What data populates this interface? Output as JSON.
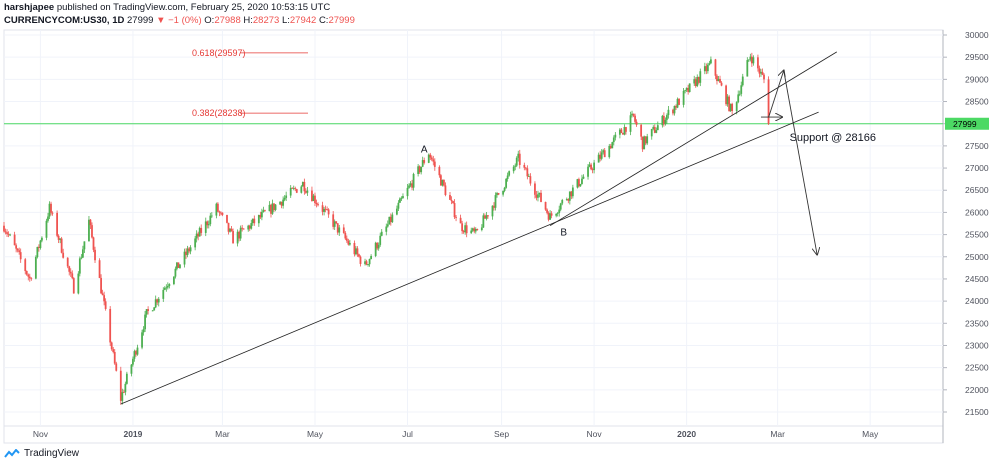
{
  "header": {
    "author": "harshjapee",
    "published": "published on TradingView.com, February 25, 2020 10:53:15 UTC",
    "symbol": "CURRENCYCOM:US30, 1D",
    "last": "27999",
    "change": "−1 (0%)",
    "o_label": "O:",
    "o_value": "27988",
    "h_label": "H:",
    "h_value": "28273",
    "l_label": "L:",
    "l_value": "27942",
    "c_label": "C:",
    "c_value": "27999"
  },
  "footer": {
    "brand": "TradingView"
  },
  "colors": {
    "up": "#26a69a",
    "up_bright": "#4caf50",
    "down": "#ef5350",
    "fib": "#e53935",
    "support_line": "#4cd964",
    "price_tag": "#4cd964",
    "trend": "#222222"
  },
  "chart_data": {
    "type": "candlestick",
    "title": "",
    "y_axis": {
      "ticks": [
        "30000",
        "29500",
        "29000",
        "28500",
        "28000",
        "27500",
        "27000",
        "26500",
        "26000",
        "25500",
        "25000",
        "24500",
        "24000",
        "23500",
        "23000",
        "22500",
        "22000",
        "21500"
      ],
      "range": [
        21250,
        30150
      ]
    },
    "x_axis": {
      "ticks": [
        "Nov",
        "2019",
        "Mar",
        "May",
        "Jul",
        "Sep",
        "Nov",
        "2020",
        "Mar",
        "May"
      ],
      "range_dates": [
        "2018-10-08",
        "2020-06-18"
      ]
    },
    "price_tag": "27999",
    "anchor_points": [
      {
        "date": "2018-10-08",
        "close": 25700
      },
      {
        "date": "2018-10-25",
        "close": 24500
      },
      {
        "date": "2018-11-07",
        "close": 26100
      },
      {
        "date": "2018-11-23",
        "close": 24300
      },
      {
        "date": "2018-12-03",
        "close": 25800
      },
      {
        "date": "2018-12-24",
        "close": 21800
      },
      {
        "date": "2019-01-10",
        "close": 23700
      },
      {
        "date": "2019-02-25",
        "close": 26100
      },
      {
        "date": "2019-03-08",
        "close": 25400
      },
      {
        "date": "2019-04-23",
        "close": 26650
      },
      {
        "date": "2019-05-10",
        "close": 25900
      },
      {
        "date": "2019-06-03",
        "close": 24800
      },
      {
        "date": "2019-07-15",
        "close": 27350
      },
      {
        "date": "2019-08-05",
        "close": 25700
      },
      {
        "date": "2019-08-15",
        "close": 25500
      },
      {
        "date": "2019-09-12",
        "close": 27200
      },
      {
        "date": "2019-10-03",
        "close": 25900
      },
      {
        "date": "2019-11-27",
        "close": 28150
      },
      {
        "date": "2019-12-03",
        "close": 27550
      },
      {
        "date": "2020-01-17",
        "close": 29350
      },
      {
        "date": "2020-01-31",
        "close": 28250
      },
      {
        "date": "2020-02-12",
        "close": 29550
      },
      {
        "date": "2020-02-21",
        "close": 28990
      },
      {
        "date": "2020-02-24",
        "close": 27999
      }
    ],
    "fibonacci": [
      {
        "label": "0.618(29597)",
        "value": 29597
      },
      {
        "label": "0.382(28238)",
        "value": 28238
      }
    ],
    "horizontal_line": 27999,
    "trendlines": [
      {
        "from": {
          "date": "2018-12-24",
          "value": 21680
        },
        "to": {
          "date": "2020-03-28",
          "value": 28260
        }
      },
      {
        "from": {
          "date": "2019-10-03",
          "value": 25700
        },
        "to": {
          "date": "2020-04-09",
          "value": 29620
        }
      }
    ],
    "annotations": [
      {
        "text": "A",
        "date": "2019-07-12",
        "value": 27620
      },
      {
        "text": "B",
        "date": "2019-10-12",
        "value": 25750
      },
      {
        "text": "Support @ 28166",
        "date": "2020-02-26",
        "value": 27880
      }
    ],
    "projection_path": [
      {
        "date": "2020-02-24",
        "value": 28140
      },
      {
        "date": "2020-03-05",
        "value": 29200
      },
      {
        "date": "2020-03-27",
        "value": 25050
      }
    ],
    "marker_arrow": {
      "from": {
        "date": "2020-02-19",
        "value": 28150
      },
      "to": {
        "date": "2020-03-04",
        "value": 28150
      }
    }
  }
}
